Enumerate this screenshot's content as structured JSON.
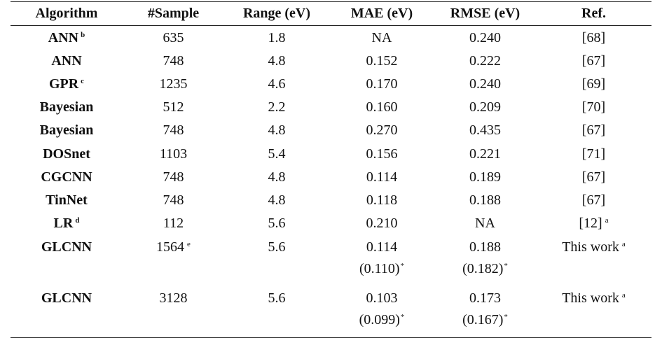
{
  "table": {
    "headers": [
      "Algorithm",
      "#Sample",
      "Range (eV)",
      "MAE (eV)",
      "RMSE (eV)",
      "Ref."
    ],
    "rows": [
      {
        "algorithm": "ANN",
        "algorithm_sup": "b",
        "sample": "635",
        "sample_sup": "",
        "range": "1.8",
        "mae": "NA",
        "mae_sub": "",
        "rmse": "0.240",
        "rmse_sub": "",
        "ref": "[68]",
        "ref_sup": ""
      },
      {
        "algorithm": "ANN",
        "algorithm_sup": "",
        "sample": "748",
        "sample_sup": "",
        "range": "4.8",
        "mae": "0.152",
        "mae_sub": "",
        "rmse": "0.222",
        "rmse_sub": "",
        "ref": "[67]",
        "ref_sup": ""
      },
      {
        "algorithm": "GPR",
        "algorithm_sup": "c",
        "sample": "1235",
        "sample_sup": "",
        "range": "4.6",
        "mae": "0.170",
        "mae_sub": "",
        "rmse": "0.240",
        "rmse_sub": "",
        "ref": "[69]",
        "ref_sup": ""
      },
      {
        "algorithm": "Bayesian",
        "algorithm_sup": "",
        "sample": "512",
        "sample_sup": "",
        "range": "2.2",
        "mae": "0.160",
        "mae_sub": "",
        "rmse": "0.209",
        "rmse_sub": "",
        "ref": "[70]",
        "ref_sup": ""
      },
      {
        "algorithm": "Bayesian",
        "algorithm_sup": "",
        "sample": "748",
        "sample_sup": "",
        "range": "4.8",
        "mae": "0.270",
        "mae_sub": "",
        "rmse": "0.435",
        "rmse_sub": "",
        "ref": "[67]",
        "ref_sup": ""
      },
      {
        "algorithm": "DOSnet",
        "algorithm_sup": "",
        "sample": "1103",
        "sample_sup": "",
        "range": "5.4",
        "mae": "0.156",
        "mae_sub": "",
        "rmse": "0.221",
        "rmse_sub": "",
        "ref": "[71]",
        "ref_sup": ""
      },
      {
        "algorithm": "CGCNN",
        "algorithm_sup": "",
        "sample": "748",
        "sample_sup": "",
        "range": "4.8",
        "mae": "0.114",
        "mae_sub": "",
        "rmse": "0.189",
        "rmse_sub": "",
        "ref": "[67]",
        "ref_sup": ""
      },
      {
        "algorithm": "TinNet",
        "algorithm_sup": "",
        "sample": "748",
        "sample_sup": "",
        "range": "4.8",
        "mae": "0.118",
        "mae_sub": "",
        "rmse": "0.188",
        "rmse_sub": "",
        "ref": "[67]",
        "ref_sup": ""
      },
      {
        "algorithm": "LR",
        "algorithm_sup": "d",
        "sample": "112",
        "sample_sup": "",
        "range": "5.6",
        "mae": "0.210",
        "mae_sub": "",
        "rmse": "NA",
        "rmse_sub": "",
        "ref": "[12]",
        "ref_sup": "a"
      },
      {
        "algorithm": "GLCNN",
        "algorithm_sup": "",
        "sample": "1564",
        "sample_sup": "e",
        "range": "5.6",
        "mae": "0.114",
        "mae_sub": "(0.110)",
        "rmse": "0.188",
        "rmse_sub": "(0.182)",
        "ref": "This work",
        "ref_sup": "a"
      },
      {
        "algorithm": "GLCNN",
        "algorithm_sup": "",
        "sample": "3128",
        "sample_sup": "",
        "range": "5.6",
        "mae": "0.103",
        "mae_sub": "(0.099)",
        "rmse": "0.173",
        "rmse_sub": "(0.167)",
        "ref": "This work",
        "ref_sup": "a"
      }
    ],
    "star_mark": "*"
  }
}
